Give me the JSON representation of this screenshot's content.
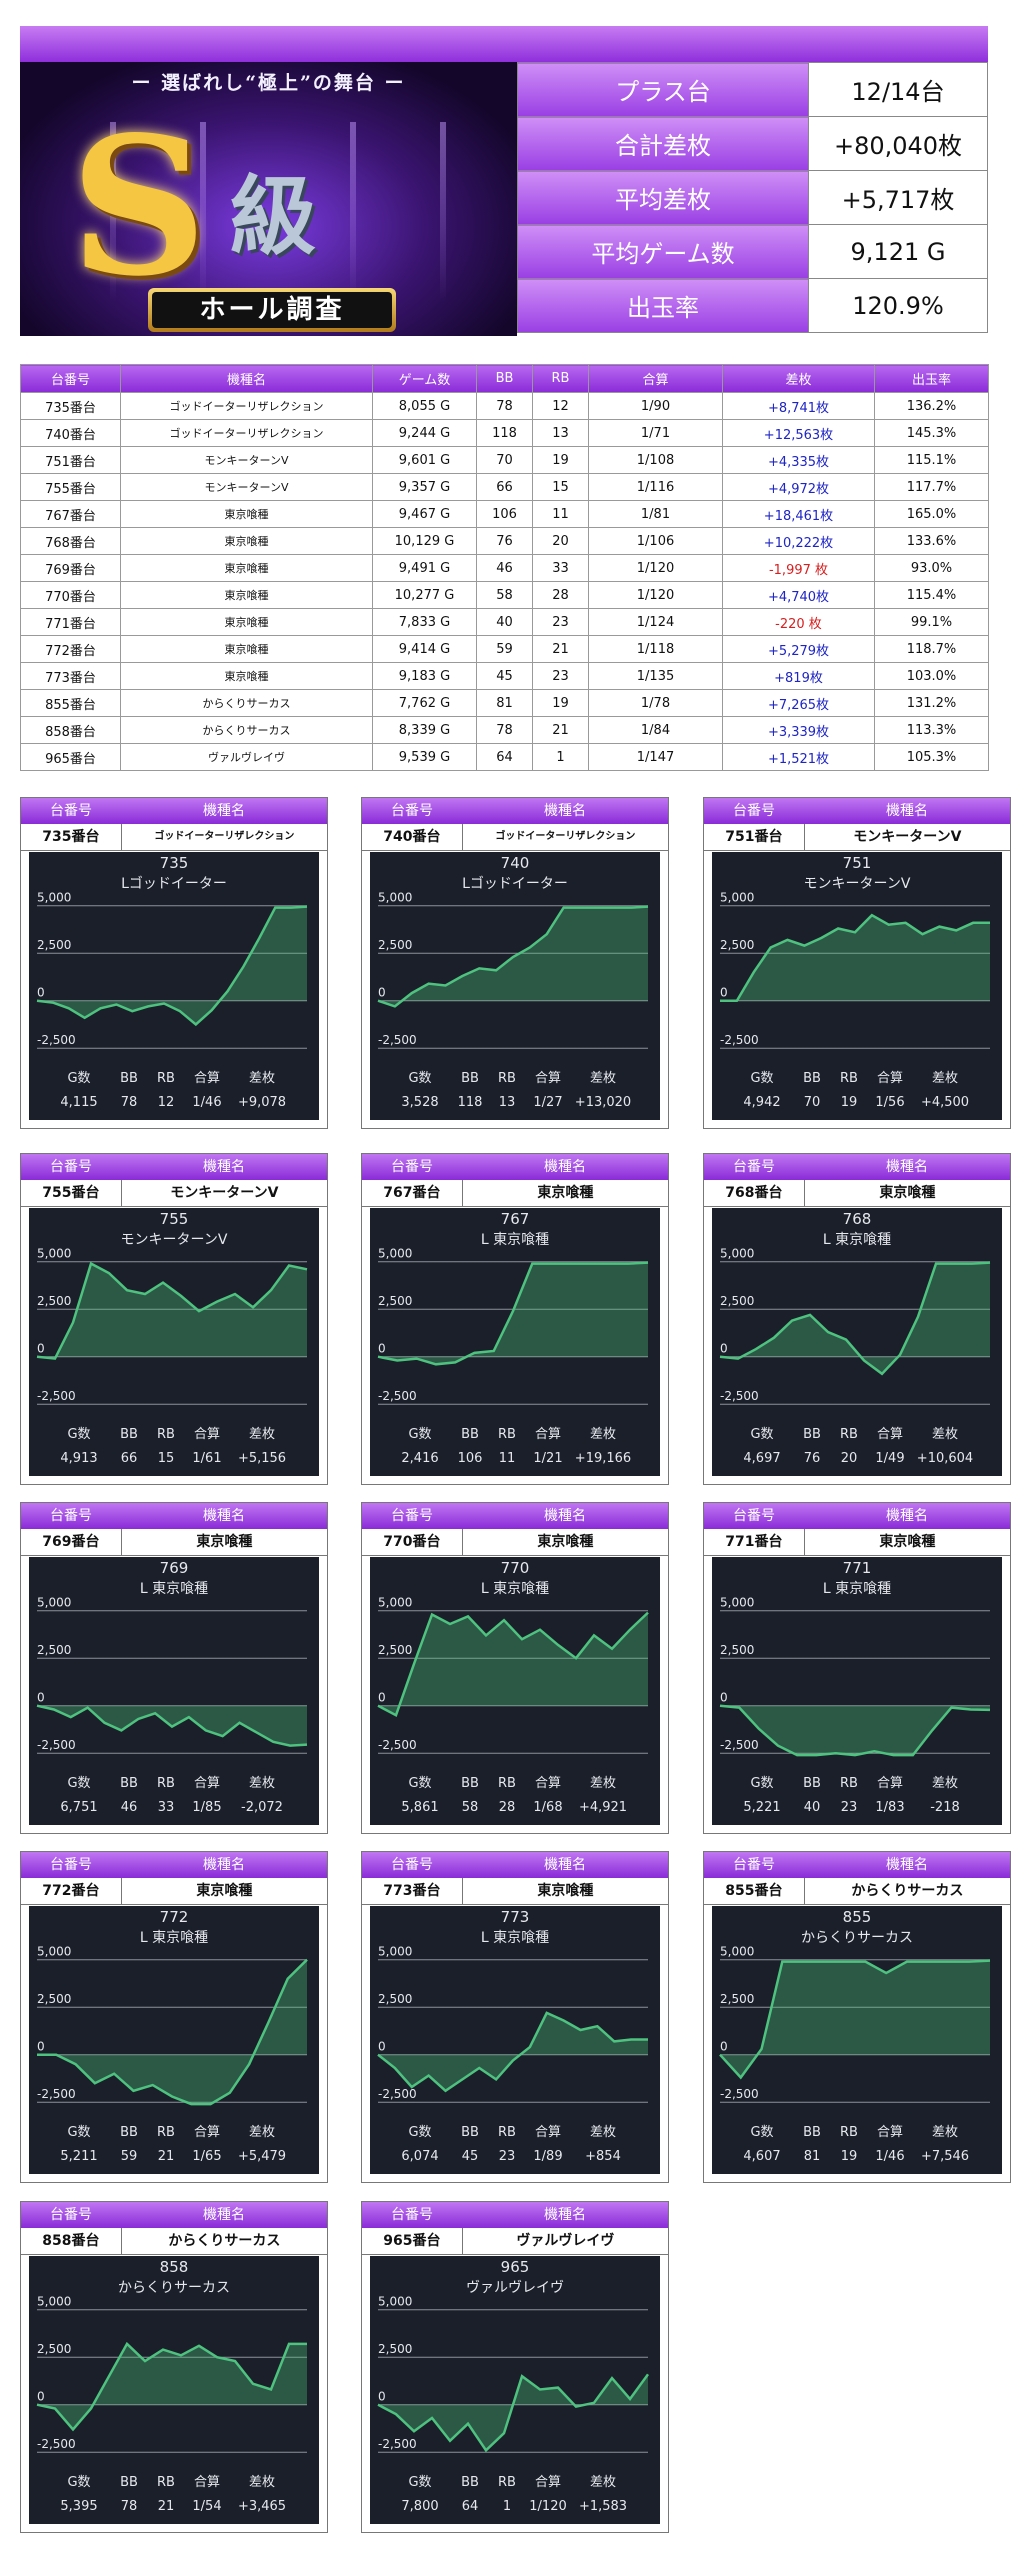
{
  "summary": {
    "rows": [
      {
        "label": "プラス台",
        "value": "12/14台"
      },
      {
        "label": "合計差枚",
        "value": "+80,040枚"
      },
      {
        "label": "平均差枚",
        "value": "+5,717枚"
      },
      {
        "label": "平均ゲーム数",
        "value": "9,121 G"
      },
      {
        "label": "出玉率",
        "value": "120.9%"
      }
    ]
  },
  "banner": {
    "tagline": "ー 選ばれし“極上”の舞台 ー",
    "logo_s": "S",
    "logo_kyu": "級",
    "plate": "ホール調査"
  },
  "table": {
    "headers": [
      "台番号",
      "機種名",
      "ゲーム数",
      "BB",
      "RB",
      "合算",
      "差枚",
      "出玉率"
    ],
    "rows": [
      [
        "735番台",
        "ゴッドイーターリザレクション",
        "8,055 G",
        "78",
        "12",
        "1/90",
        "+8,741枚",
        "136.2%"
      ],
      [
        "740番台",
        "ゴッドイーターリザレクション",
        "9,244 G",
        "118",
        "13",
        "1/71",
        "+12,563枚",
        "145.3%"
      ],
      [
        "751番台",
        "モンキーターンV",
        "9,601 G",
        "70",
        "19",
        "1/108",
        "+4,335枚",
        "115.1%"
      ],
      [
        "755番台",
        "モンキーターンV",
        "9,357 G",
        "66",
        "15",
        "1/116",
        "+4,972枚",
        "117.7%"
      ],
      [
        "767番台",
        "東京喰種",
        "9,467 G",
        "106",
        "11",
        "1/81",
        "+18,461枚",
        "165.0%"
      ],
      [
        "768番台",
        "東京喰種",
        "10,129 G",
        "76",
        "20",
        "1/106",
        "+10,222枚",
        "133.6%"
      ],
      [
        "769番台",
        "東京喰種",
        "9,491 G",
        "46",
        "33",
        "1/120",
        "-1,997 枚",
        "93.0%"
      ],
      [
        "770番台",
        "東京喰種",
        "10,277 G",
        "58",
        "28",
        "1/120",
        "+4,740枚",
        "115.4%"
      ],
      [
        "771番台",
        "東京喰種",
        "7,833 G",
        "40",
        "23",
        "1/124",
        "-220 枚",
        "99.1%"
      ],
      [
        "772番台",
        "東京喰種",
        "9,414 G",
        "59",
        "21",
        "1/118",
        "+5,279枚",
        "118.7%"
      ],
      [
        "773番台",
        "東京喰種",
        "9,183 G",
        "45",
        "23",
        "1/135",
        "+819枚",
        "103.0%"
      ],
      [
        "855番台",
        "からくりサーカス",
        "7,762 G",
        "81",
        "19",
        "1/78",
        "+7,265枚",
        "131.2%"
      ],
      [
        "858番台",
        "からくりサーカス",
        "8,339 G",
        "78",
        "21",
        "1/84",
        "+3,339枚",
        "113.3%"
      ],
      [
        "965番台",
        "ヴァルヴレイヴ",
        "9,539 G",
        "64",
        "1",
        "1/147",
        "+1,521枚",
        "105.3%"
      ]
    ]
  },
  "card_header": {
    "col1": "台番号",
    "col2": "機種名"
  },
  "stats_headers": [
    "G数",
    "BB",
    "RB",
    "合算",
    "差枚"
  ],
  "colors": {
    "accent": "#9b3ce6",
    "positive": "#1f25c4",
    "negative": "#d81f1f",
    "chart_bg": "#1b1f29",
    "chart_line": "#4ec27f"
  },
  "chart_data": [
    {
      "type": "area",
      "machine_no": "735番台",
      "machine": "ゴッドイーターリザレクション",
      "title": "735",
      "subtitle": "Lゴッドイーター",
      "yticks": [
        "5,000",
        "2,500",
        "0",
        "-2,500"
      ],
      "ylim": [
        -2700,
        5300
      ],
      "y": [
        0,
        -100,
        -400,
        -900,
        -400,
        -200,
        -550,
        -300,
        -150,
        -550,
        -1250,
        -500,
        500,
        1800,
        3300,
        4900,
        4900,
        4950
      ],
      "stats": [
        "4,115",
        "78",
        "12",
        "1/46",
        "+9,078"
      ]
    },
    {
      "type": "area",
      "machine_no": "740番台",
      "machine": "ゴッドイーターリザレクション",
      "title": "740",
      "subtitle": "Lゴッドイーター",
      "yticks": [
        "5,000",
        "2,500",
        "0",
        "-2,500"
      ],
      "ylim": [
        -2700,
        5300
      ],
      "y": [
        0,
        -300,
        400,
        900,
        800,
        1300,
        1700,
        1600,
        2300,
        2800,
        3500,
        4900,
        4900,
        4900,
        4900,
        4900,
        4950
      ],
      "stats": [
        "3,528",
        "118",
        "13",
        "1/27",
        "+13,020"
      ]
    },
    {
      "type": "area",
      "machine_no": "751番台",
      "machine": "モンキーターンV",
      "title": "751",
      "subtitle": "モンキーターンV",
      "yticks": [
        "5,000",
        "2,500",
        "0",
        "-2,500"
      ],
      "ylim": [
        -2700,
        5300
      ],
      "y": [
        0,
        0,
        1500,
        2800,
        3200,
        2900,
        3300,
        3800,
        3600,
        4500,
        4000,
        4100,
        3500,
        3900,
        3700,
        4100,
        4100
      ],
      "stats": [
        "4,942",
        "70",
        "19",
        "1/56",
        "+4,500"
      ]
    },
    {
      "type": "area",
      "machine_no": "755番台",
      "machine": "モンキーターンV",
      "title": "755",
      "subtitle": "モンキーターンV",
      "yticks": [
        "5,000",
        "2,500",
        "0",
        "-2,500"
      ],
      "ylim": [
        -2700,
        5300
      ],
      "y": [
        0,
        -100,
        1800,
        4900,
        4400,
        3500,
        3300,
        3900,
        3200,
        2400,
        2900,
        3300,
        2600,
        3500,
        4800,
        4600
      ],
      "stats": [
        "4,913",
        "66",
        "15",
        "1/61",
        "+5,156"
      ]
    },
    {
      "type": "area",
      "machine_no": "767番台",
      "machine": "東京喰種",
      "title": "767",
      "subtitle": "L 東京喰種",
      "yticks": [
        "5,000",
        "2,500",
        "0",
        "-2,500"
      ],
      "ylim": [
        -2700,
        5300
      ],
      "y": [
        0,
        -200,
        -100,
        -400,
        -300,
        200,
        300,
        2400,
        4900,
        4900,
        4900,
        4900,
        4900,
        4900,
        4950
      ],
      "stats": [
        "2,416",
        "106",
        "11",
        "1/21",
        "+19,166"
      ]
    },
    {
      "type": "area",
      "machine_no": "768番台",
      "machine": "東京喰種",
      "title": "768",
      "subtitle": "L 東京喰種",
      "yticks": [
        "5,000",
        "2,500",
        "0",
        "-2,500"
      ],
      "ylim": [
        -2700,
        5300
      ],
      "y": [
        0,
        -100,
        400,
        1000,
        1900,
        2200,
        1300,
        900,
        -200,
        -900,
        100,
        2100,
        4900,
        4900,
        4900,
        4950
      ],
      "stats": [
        "4,697",
        "76",
        "20",
        "1/49",
        "+10,604"
      ]
    },
    {
      "type": "area",
      "machine_no": "769番台",
      "machine": "東京喰種",
      "title": "769",
      "subtitle": "L 東京喰種",
      "yticks": [
        "5,000",
        "2,500",
        "0",
        "-2,500"
      ],
      "ylim": [
        -2700,
        5300
      ],
      "y": [
        0,
        -200,
        -600,
        -100,
        -900,
        -1300,
        -700,
        -400,
        -1100,
        -600,
        -1300,
        -1600,
        -900,
        -1400,
        -1900,
        -2100,
        -2050
      ],
      "stats": [
        "6,751",
        "46",
        "33",
        "1/85",
        "-2,072"
      ]
    },
    {
      "type": "area",
      "machine_no": "770番台",
      "machine": "東京喰種",
      "title": "770",
      "subtitle": "L 東京喰種",
      "yticks": [
        "5,000",
        "2,500",
        "0",
        "-2,500"
      ],
      "ylim": [
        -2700,
        5300
      ],
      "y": [
        0,
        -500,
        2200,
        4800,
        4300,
        4700,
        3700,
        4500,
        3500,
        4000,
        3200,
        2500,
        3700,
        3000,
        4000,
        4900
      ],
      "stats": [
        "5,861",
        "58",
        "28",
        "1/68",
        "+4,921"
      ]
    },
    {
      "type": "area",
      "machine_no": "771番台",
      "machine": "東京喰種",
      "title": "771",
      "subtitle": "L 東京喰種",
      "yticks": [
        "5,000",
        "2,500",
        "0",
        "-2,500"
      ],
      "ylim": [
        -2700,
        5300
      ],
      "y": [
        0,
        -100,
        -1200,
        -2100,
        -2600,
        -2600,
        -2500,
        -2600,
        -2400,
        -2600,
        -2600,
        -1300,
        -100,
        -200,
        -220
      ],
      "stats": [
        "5,221",
        "40",
        "23",
        "1/83",
        "-218"
      ]
    },
    {
      "type": "area",
      "machine_no": "772番台",
      "machine": "東京喰種",
      "title": "772",
      "subtitle": "L 東京喰種",
      "yticks": [
        "5,000",
        "2,500",
        "0",
        "-2,500"
      ],
      "ylim": [
        -2700,
        5300
      ],
      "y": [
        0,
        0,
        -500,
        -1500,
        -1000,
        -1900,
        -1600,
        -2200,
        -2600,
        -2600,
        -2000,
        -500,
        1700,
        4000,
        5000
      ],
      "stats": [
        "5,211",
        "59",
        "21",
        "1/65",
        "+5,479"
      ]
    },
    {
      "type": "area",
      "machine_no": "773番台",
      "machine": "東京喰種",
      "title": "773",
      "subtitle": "L 東京喰種",
      "yticks": [
        "5,000",
        "2,500",
        "0",
        "-2,500"
      ],
      "ylim": [
        -2700,
        5300
      ],
      "y": [
        0,
        -700,
        -1700,
        -1100,
        -1900,
        -1300,
        -700,
        -1300,
        -300,
        400,
        2200,
        1800,
        1300,
        1500,
        700,
        800,
        800
      ],
      "stats": [
        "6,074",
        "45",
        "23",
        "1/89",
        "+854"
      ]
    },
    {
      "type": "area",
      "machine_no": "855番台",
      "machine": "からくりサーカス",
      "title": "855",
      "subtitle": "からくりサーカス",
      "yticks": [
        "5,000",
        "2,500",
        "0",
        "-2,500"
      ],
      "ylim": [
        -2700,
        5300
      ],
      "y": [
        0,
        -1200,
        300,
        4900,
        4900,
        4900,
        4900,
        4900,
        4300,
        4900,
        4900,
        4900,
        4900,
        4950
      ],
      "stats": [
        "4,607",
        "81",
        "19",
        "1/46",
        "+7,546"
      ]
    },
    {
      "type": "area",
      "machine_no": "858番台",
      "machine": "からくりサーカス",
      "title": "858",
      "subtitle": "からくりサーカス",
      "yticks": [
        "5,000",
        "2,500",
        "0",
        "-2,500"
      ],
      "ylim": [
        -2700,
        5300
      ],
      "y": [
        0,
        -200,
        -1300,
        -200,
        1500,
        3200,
        2300,
        2900,
        2600,
        3100,
        2500,
        2300,
        1100,
        800,
        3200,
        3200
      ],
      "stats": [
        "5,395",
        "78",
        "21",
        "1/54",
        "+3,465"
      ]
    },
    {
      "type": "area",
      "machine_no": "965番台",
      "machine": "ヴァルヴレイヴ",
      "title": "965",
      "subtitle": "ヴァルヴレイヴ",
      "yticks": [
        "5,000",
        "2,500",
        "0",
        "-2,500"
      ],
      "ylim": [
        -2700,
        5300
      ],
      "y": [
        0,
        -500,
        -1400,
        -700,
        -1900,
        -1000,
        -2400,
        -1500,
        1500,
        800,
        900,
        -100,
        100,
        1400,
        300,
        1600
      ],
      "stats": [
        "7,800",
        "64",
        "1",
        "1/120",
        "+1,583"
      ]
    }
  ]
}
